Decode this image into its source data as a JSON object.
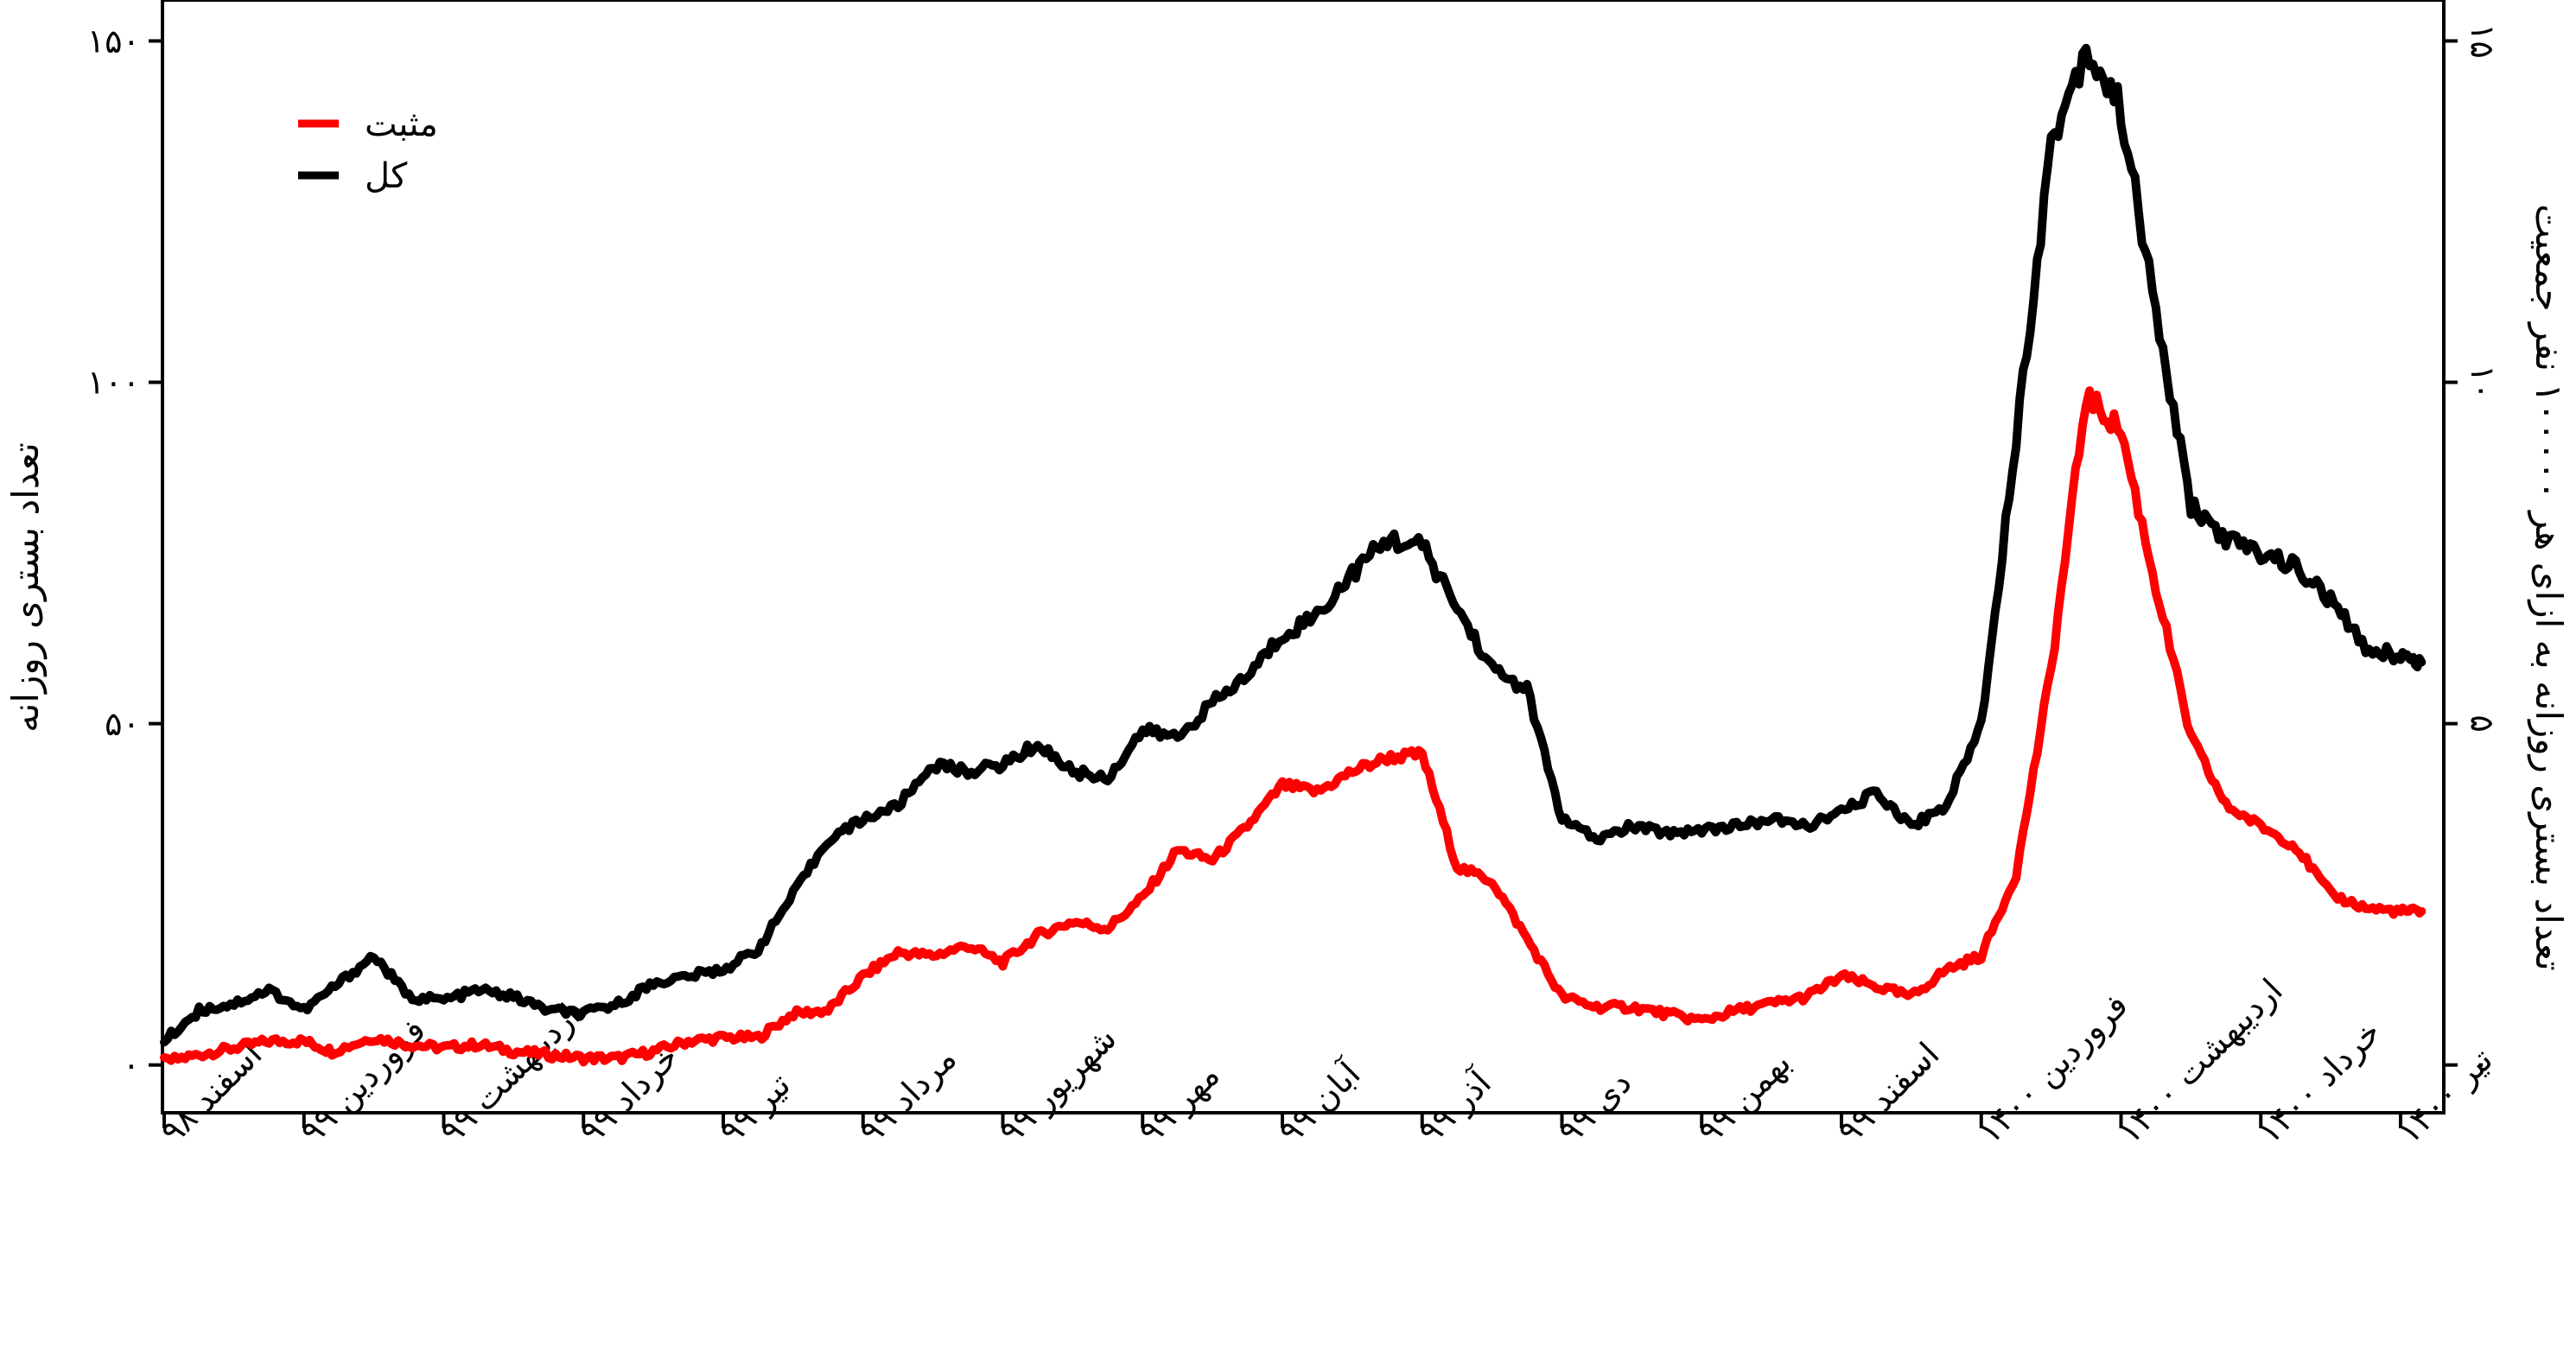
{
  "chart_data": {
    "type": "line",
    "title": "",
    "xlabel": "",
    "ylabel_left": "تعداد بستری روزانه",
    "ylabel_right": "تعداد بستری روزانه به ازای هر ۱۰۰۰۰۰ نفر جمعیت",
    "ylim_left": [
      -7,
      156
    ],
    "ylim_right": [
      -0.7,
      15.6
    ],
    "y_ticks_left": [
      {
        "value": 0,
        "label": "۰"
      },
      {
        "value": 50,
        "label": "۵۰"
      },
      {
        "value": 100,
        "label": "۱۰۰"
      },
      {
        "value": 150,
        "label": "۱۵۰"
      }
    ],
    "y_ticks_right": [
      {
        "value": 0,
        "label": "۰"
      },
      {
        "value": 5,
        "label": "۵"
      },
      {
        "value": 10,
        "label": "۱۰"
      },
      {
        "value": 15,
        "label": "۱۵"
      }
    ],
    "x_ticks": [
      "اسفند ۹۸",
      "فروردین ۹۹",
      "اردیبهشت ۹۹",
      "خرداد ۹۹",
      "تیر ۹۹",
      "مرداد ۹۹",
      "شهریور ۹۹",
      "مهر ۹۹",
      "آبان ۹۹",
      "آذر ۹۹",
      "دی ۹۹",
      "بهمن ۹۹",
      "اسفند ۹۹",
      "فروردین ۱۴۰۰",
      "اردیبهشت ۱۴۰۰",
      "خرداد ۱۴۰۰",
      "تیر ۱۴۰۰"
    ],
    "x_range_months": [
      0,
      16.15
    ],
    "legend_position": "top-left",
    "grid": false,
    "series": [
      {
        "name": "مثبت",
        "color": "#ff0000",
        "x": [
          0,
          0.25,
          0.5,
          0.75,
          1.0,
          1.2,
          1.5,
          1.75,
          2.0,
          2.25,
          2.5,
          2.75,
          3.0,
          3.25,
          3.5,
          3.75,
          4.0,
          4.25,
          4.5,
          4.75,
          5.0,
          5.25,
          5.5,
          5.75,
          6.0,
          6.25,
          6.5,
          6.75,
          7.0,
          7.25,
          7.5,
          7.75,
          8.0,
          8.25,
          8.5,
          8.75,
          9.0,
          9.25,
          9.5,
          9.75,
          10.0,
          10.25,
          10.5,
          10.75,
          11.0,
          11.25,
          11.5,
          11.75,
          12.0,
          12.25,
          12.5,
          12.75,
          13.0,
          13.25,
          13.5,
          13.75,
          14.0,
          14.25,
          14.5,
          14.75,
          15.0,
          15.25,
          15.5,
          15.75,
          16.0,
          16.15
        ],
        "values": [
          0.5,
          1.5,
          2.5,
          3.5,
          3.5,
          2.0,
          4.0,
          3.0,
          2.5,
          3.0,
          2.0,
          1.5,
          1.0,
          1.0,
          2.0,
          3.5,
          4.0,
          4.0,
          7.5,
          8.0,
          13.0,
          16.5,
          16.0,
          17.5,
          15.0,
          19.0,
          21.0,
          20.0,
          24.5,
          31.5,
          30.0,
          35.0,
          41.0,
          40.0,
          43.0,
          45.0,
          45.5,
          29.0,
          27.0,
          18.5,
          10.0,
          8.5,
          8.5,
          7.5,
          6.5,
          8.0,
          9.0,
          10.0,
          13.0,
          11.5,
          10.0,
          14.0,
          16.0,
          28.0,
          58.0,
          98.0,
          93.0,
          70.0,
          48.0,
          38.0,
          35.0,
          32.0,
          25.0,
          23.0,
          22.5,
          22.5
        ]
      },
      {
        "name": "کل",
        "color": "#000000",
        "x": [
          0,
          0.25,
          0.5,
          0.75,
          1.0,
          1.25,
          1.5,
          1.75,
          2.0,
          2.25,
          2.5,
          2.75,
          3.0,
          3.25,
          3.5,
          3.75,
          4.0,
          4.25,
          4.5,
          4.75,
          5.0,
          5.25,
          5.5,
          5.75,
          6.0,
          6.25,
          6.5,
          6.75,
          7.0,
          7.25,
          7.5,
          7.75,
          8.0,
          8.25,
          8.5,
          8.75,
          9.0,
          9.25,
          9.5,
          9.75,
          10.0,
          10.25,
          10.5,
          10.75,
          11.0,
          11.25,
          11.5,
          11.75,
          12.0,
          12.25,
          12.5,
          12.75,
          13.0,
          13.25,
          13.5,
          13.75,
          14.0,
          14.25,
          14.5,
          14.75,
          15.0,
          15.25,
          15.5,
          15.75,
          16.0,
          16.15
        ],
        "values": [
          3.5,
          8.0,
          9.0,
          11.0,
          8.0,
          12.0,
          16.0,
          10.0,
          9.5,
          11.0,
          10.0,
          8.0,
          7.5,
          9.0,
          12.0,
          13.0,
          14.0,
          17.0,
          25.0,
          33.0,
          36.0,
          38.0,
          44.0,
          43.0,
          44.0,
          47.0,
          43.0,
          42.0,
          49.0,
          48.0,
          53.0,
          57.0,
          63.0,
          66.0,
          72.0,
          77.0,
          76.0,
          67.0,
          58.0,
          55.0,
          36.0,
          33.0,
          35.0,
          34.0,
          34.5,
          35.0,
          36.0,
          35.0,
          37.0,
          40.0,
          35.0,
          38.0,
          50.0,
          92.0,
          135.0,
          149.0,
          140.0,
          110.0,
          82.0,
          77.0,
          75.0,
          73.0,
          68.0,
          61.0,
          60.0,
          59.0
        ]
      }
    ]
  }
}
